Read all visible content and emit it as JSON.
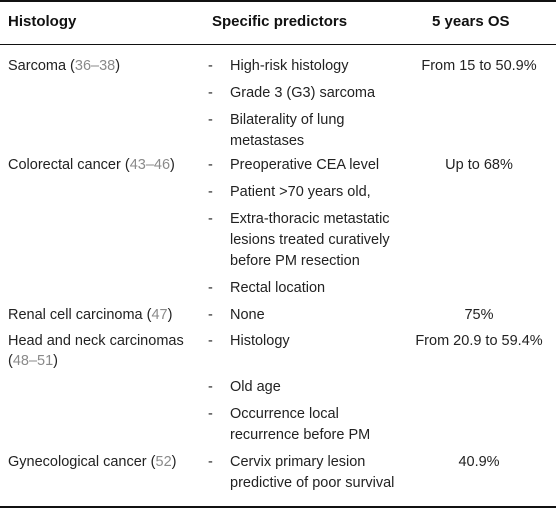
{
  "headers": [
    "Histology",
    "Specific predictors",
    "5 years OS"
  ],
  "rows": [
    {
      "histology": "Sarcoma",
      "refs": "36–38",
      "predictors": [
        "High-risk histology",
        "Grade 3 (G3) sarcoma",
        "Bilaterality of lung metastases"
      ],
      "os": "From 15 to 50.9%"
    },
    {
      "histology": "Colorectal cancer",
      "refs": "43–46",
      "predictors": [
        "Preoperative CEA level",
        "Patient >70 years old,",
        "Extra-thoracic metastatic lesions treated curatively before PM resection",
        "Rectal location"
      ],
      "os": "Up to 68%"
    },
    {
      "histology": "Renal cell carcinoma",
      "refs": "47",
      "predictors": [
        "None"
      ],
      "os": "75%"
    },
    {
      "histology": "Head and neck carcinomas",
      "refs": "48–51",
      "predictors": [
        "Histology",
        "Old age",
        "Occurrence local recurrence before PM"
      ],
      "os": "From 20.9 to 59.4%"
    },
    {
      "histology": "Gynecological cancer",
      "refs": "52",
      "predictors": [
        "Cervix primary lesion predictive of poor survival"
      ],
      "os": "40.9%"
    }
  ]
}
